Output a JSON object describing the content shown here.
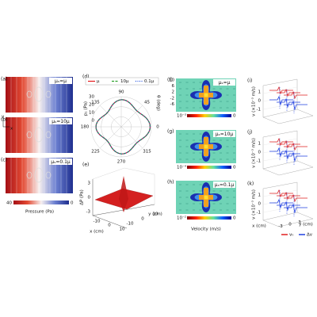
{
  "pressure": {
    "panels": [
      {
        "label": "(a)",
        "annotation": "μₛ=μ"
      },
      {
        "label": "(b)",
        "annotation": "μₛ=10μ"
      },
      {
        "label": "(c)",
        "annotation": "μₛ=0.1μ"
      }
    ],
    "axis_y": "y",
    "axis_x": "x",
    "colorbar_max": "40",
    "colorbar_min": "0",
    "title": "Pressure (Pa)"
  },
  "polar": {
    "label": "(d)",
    "legend": [
      "μ",
      "10μ",
      "0.1μ"
    ],
    "angles": [
      "90",
      "45",
      "0",
      "315",
      "270",
      "225",
      "180",
      "135"
    ],
    "radial_ticks": [
      "30",
      "20",
      "10",
      "0"
    ],
    "radial_title": "p₁ (Pa)",
    "angle_title": "θ (deg)"
  },
  "surface": {
    "label": "(e)",
    "z_title": "ΔP (Pa)",
    "z_ticks": [
      "3",
      "0",
      "-3"
    ],
    "x_title": "x (cm)",
    "x_ticks": [
      "-10",
      "0",
      "10"
    ],
    "y_title": "y (cm)",
    "y_ticks": [
      "-10",
      "0",
      "10"
    ]
  },
  "velocity": {
    "panels": [
      {
        "label": "(f)",
        "annotation": "μₛ=μ",
        "scale": "10⁻³",
        "zero": "0"
      },
      {
        "label": "(g)",
        "annotation": "μₛ=10μ",
        "scale": "10⁻⁴",
        "zero": "0"
      },
      {
        "label": "(h)",
        "annotation": "μₛ=0.1μ",
        "scale": "10⁻²",
        "zero": "0"
      }
    ],
    "axis_ticks": [
      "10",
      "6",
      "2",
      "-2",
      "-6"
    ],
    "title": "Velocity (m/s)"
  },
  "profiles": {
    "panels": [
      {
        "label": "(i)"
      },
      {
        "label": "(j)"
      },
      {
        "label": "(k)"
      }
    ],
    "y_title": "v (×10⁻³ m/s)",
    "y_ticks": [
      "1",
      "0",
      "-1"
    ],
    "x_title": "x (cm)",
    "y_axis_title": "y (cm)",
    "x_ticks": [
      "-3",
      "0",
      "3"
    ],
    "legend": [
      "vₙ",
      "Δv"
    ]
  }
}
